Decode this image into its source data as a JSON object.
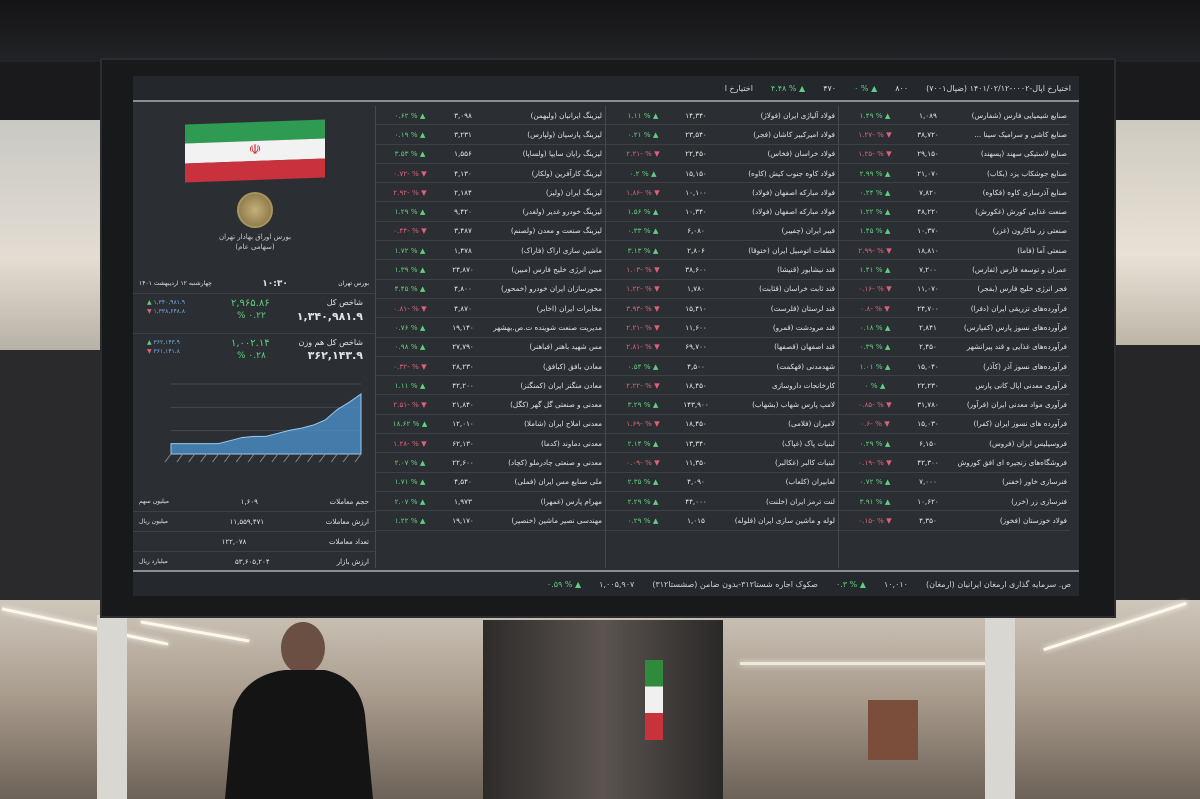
{
  "header": {
    "items": [
      "اختیارخ اپال-۰۰۰۲-۱۴۰۱/۰۲/۱۲ (ضپال۷۰۰۱)",
      "۸۰۰",
      "▲ % ۰",
      "۴۷۰",
      "▲ % ۴.۴۸",
      "اختیارخ ا"
    ]
  },
  "footer": {
    "items": [
      "ص. سرمایه گذاری ارمغان ایرانیان (ارمغان)",
      "۱۰,۰۱۰",
      "▲ % ۰.۳",
      "صکوک اجاره شستا۳۱۲-بدون ضامن (صشستا۳۱۲)",
      "۱,۰۰۵,۹۰۷",
      "▲ % ۰.۵۹"
    ]
  },
  "left_panel": {
    "emblem_text": [
      "بورس اوراق بهادار تهران",
      "(سهامی عام)"
    ],
    "date": "چهارشنبه ۱۲ اردیبهشت ۱۴۰۱",
    "time": "۱۰:۳۰",
    "session": "بورس تهران",
    "index_label": "شاخص کل",
    "index_value": "۱,۳۴۰,۹۸۱.۹",
    "index_change": "۲,۹۶۵.۸۶",
    "index_pct": "% ۰.۲۲",
    "index_high": "۱,۳۴۰,۹۸۱.۹",
    "index_low": "۱,۳۳۸,۶۴۸.۸",
    "eq_label": "شاخص کل هم وزن",
    "eq_value": "۳۶۲,۱۴۳.۹",
    "eq_change": "۱,۰۰۲.۱۴",
    "eq_pct": "% ۰.۲۸",
    "eq_high": "۳۶۲,۱۴۳.۹",
    "eq_low": "۳۶۱,۱۴۱.۸",
    "stats": [
      {
        "label": "حجم معاملات",
        "value": "۱,۶۰۹",
        "unit": "میلیون سهم"
      },
      {
        "label": "ارزش معاملات",
        "value": "۱۱,۵۵۹,۴۷۱",
        "unit": "میلیون ریال"
      },
      {
        "label": "تعداد معاملات",
        "value": "۱۲۲,۰۷۸",
        "unit": ""
      },
      {
        "label": "ارزش بازار",
        "value": "۵۳,۶۰۵,۲۰۴",
        "unit": "میلیارد ریال"
      }
    ]
  },
  "chart_data": {
    "type": "area",
    "values": [
      1,
      1,
      1,
      1,
      1,
      1.3,
      1.6,
      1.7,
      1.7,
      2,
      2.3,
      2.5,
      2.8,
      3.3,
      4.3,
      5,
      5.8
    ],
    "color": "#4a90c8"
  },
  "colors": {
    "up": "#5fd07e",
    "down": "#e0607a"
  },
  "columns": [
    [
      [
        "لیزینگ ایرانیان (ولبهمن)",
        "۳,۰۹۸",
        "۰.۶۲",
        1
      ],
      [
        "لیزینگ پارسیان (ولپارس)",
        "۳,۲۳۱",
        "۰.۱۹",
        1
      ],
      [
        "لیزینگ رایان سایپا (ولساپا)",
        "۱,۵۵۶",
        "۳.۵۳",
        1
      ],
      [
        "لیزینگ کارآفرین (ولکار)",
        "۴,۱۳۰",
        "-۰.۷۲",
        0
      ],
      [
        "لیزینگ ایران (ولیز)",
        "۲,۱۸۴",
        "-۲.۹۲",
        0
      ],
      [
        "لیزینگ خودرو غدیر (ولغدر)",
        "۹,۴۲۰",
        "۱.۲۹",
        1
      ],
      [
        "لیزینگ صنعت و معدن (ولصنم)",
        "۳,۴۸۷",
        "-۰.۴۴",
        0
      ],
      [
        "ماشین سازی اراک (فاراک)",
        "۱,۴۷۸",
        "۱.۷۲",
        1
      ],
      [
        "مبین انرژی خلیج فارس (مبین)",
        "۲۴,۸۷۰",
        "۱.۳۹",
        1
      ],
      [
        "محورسازان ایران خودرو (خمحور)",
        "۴,۸۰۰",
        "۴.۴۵",
        1
      ],
      [
        "مخابرات ایران (اخابر)",
        "۴,۸۷۰",
        "-۰.۸۱",
        0
      ],
      [
        "مدیریت صنعت شوینده ت.ص.بهشهر",
        "۱۹,۱۴۰",
        "۰.۷۶",
        1
      ],
      [
        "مس شهید باهنر (فباهنر)",
        "۲۷,۷۹۰",
        "۰.۹۸",
        1
      ],
      [
        "معادن بافق (کبافق)",
        "۲۸,۲۳۰",
        "-۰.۳۲",
        0
      ],
      [
        "معادن منگنز ایران (کمنگنز)",
        "۴۲,۲۰۰",
        "۱.۱۱",
        1
      ],
      [
        "معدنی و صنعتی گل گهر (کگل)",
        "۲۱,۸۴۰",
        "-۲.۵۱",
        0
      ],
      [
        "معدنی املاح ایران (شاملا)",
        "۱۲,۰۱۰",
        "۱۸.۶۲",
        1
      ],
      [
        "معدنی دماوند (کدما)",
        "۶۲,۱۳۰",
        "-۱.۲۸",
        0
      ],
      [
        "معدنی و صنعتی چادرملو (کچاد)",
        "۲۲,۶۰۰",
        "۲.۰۷",
        1
      ],
      [
        "ملی صنایع مس ایران (فملی)",
        "۴,۵۴۰",
        "۱.۷۱",
        1
      ],
      [
        "مهرام پارس (غمهرا)",
        "۱,۹۷۳",
        "۲.۰۷",
        1
      ],
      [
        "مهندسی نصیر ماشین (خنصیر)",
        "۱۹,۱۷۰",
        "۱.۲۲",
        1
      ]
    ],
    [
      [
        "فولاد آلیاژی ایران (فولاژ)",
        "۱۴,۳۴۰",
        "۱.۱۱",
        1
      ],
      [
        "فولاد امیرکبیر کاشان (فجر)",
        "۲۳,۵۴۰",
        "۰.۲۱",
        1
      ],
      [
        "فولاد خراسان (فخاس)",
        "۲۲,۴۵۰",
        "-۲.۲۱",
        0
      ],
      [
        "فولاد کاوه جنوب کیش (کاوه)",
        "۱۵,۱۵۰",
        "۰.۲",
        1
      ],
      [
        "فولاد مبارکه اصفهان (فولاد)",
        "۱۰,۱۰۰",
        "-۱.۸۶",
        0
      ],
      [
        "فولاد مبارکه اصفهان (فولاد)",
        "۱۰,۳۴۰",
        "۱.۵۶",
        1
      ],
      [
        "فیبر ایران (چفیبر)",
        "۶,۰۸۰",
        "۰.۳۳",
        1
      ],
      [
        "قطعات اتومبیل ایران (ختوقا)",
        "۲,۸۰۶",
        "۳.۱۳",
        1
      ],
      [
        "قند نیشابور (قنیشا)",
        "۳۸,۶۰۰",
        "-۱.۰۳",
        0
      ],
      [
        "قند ثابت خراسان (قثابت)",
        "۱,۷۸۰",
        "-۱.۲۲",
        0
      ],
      [
        "قند لرستان (قلرست)",
        "۱۵,۴۱۰",
        "-۳.۹۳",
        0
      ],
      [
        "قند مرودشت (قمرو)",
        "۱۱,۶۰۰",
        "-۲.۲۱",
        0
      ],
      [
        "قند اصفهان (قصفها)",
        "۶۹,۷۰۰",
        "-۲.۸۱",
        0
      ],
      [
        "شهدمدنی (قهکمت)",
        "۴,۵۰۰",
        "۰.۵۴",
        1
      ],
      [
        "کارخانجات داروسازی",
        "۱۸,۴۵۰",
        "-۲.۲۲",
        0
      ],
      [
        "لامپ پارس شهاب (بشهاب)",
        "۱۴۳,۹۰۰",
        "۳.۲۹",
        1
      ],
      [
        "لامیران (فلامی)",
        "۱۸,۴۵۰",
        "-۱.۶۹",
        0
      ],
      [
        "لبنیات پاک (غپاک)",
        "۱۳,۳۴۰",
        "۲.۱۴",
        1
      ],
      [
        "لبنیات کالبر (غکالبر)",
        "۱۱,۳۵۰",
        "-۰.۰۹",
        0
      ],
      [
        "لعابیران (کلعاب)",
        "۴,۰۹۰",
        "۲.۳۵",
        1
      ],
      [
        "لنت ترمز ایران (خلنت)",
        "۴۴,۰۰۰",
        "۲.۲۹",
        1
      ],
      [
        "لوله و ماشین سازی ایران (فلوله)",
        "۱,۰۱۵",
        "۰.۲۹",
        1
      ]
    ],
    [
      [
        "صنایع شیمیایی فارس (شفارس)",
        "۱,۰۸۹",
        "۱.۴۹",
        1
      ],
      [
        "صنایع کاشی و سرامیک سینا ...",
        "۳۸,۷۲۰",
        "-۱.۲۷",
        0
      ],
      [
        "صنایع لاستیکی سهند (پسهند)",
        "۲۹,۱۵۰",
        "-۱.۲۵",
        0
      ],
      [
        "صنایع جوشکاب یزد (بکاب)",
        "۲۱,۰۷۰",
        "۲.۹۹",
        1
      ],
      [
        "صنایع آذرسازی کاوه (فکاوه)",
        "۷,۸۲۰",
        "۰.۲۴",
        1
      ],
      [
        "صنعت غذایی کورش (غکورش)",
        "۴۸,۲۲۰",
        "۱.۲۲",
        1
      ],
      [
        "صنعتی زر ماکارون (غزر)",
        "۱۰,۳۷۰",
        "۱.۴۵",
        1
      ],
      [
        "صنعتی آما (فاما)",
        "۱۸,۸۱۰",
        "-۲.۹۹",
        0
      ],
      [
        "عمران و توسعه فارس (ثفارس)",
        "۷,۲۰۰",
        "۱.۴۱",
        1
      ],
      [
        "فجر انرژی خلیج فارس (بفجر)",
        "۱۱,۰۷۰",
        "-۰.۱۶",
        0
      ],
      [
        "فرآورده‌های تزریقی ایران (دفرا)",
        "۲۴,۷۰۰",
        "-۰.۸",
        0
      ],
      [
        "فرآورده‌های نسوز پارس (کفپارس)",
        "۲,۸۴۱",
        "۰.۱۸",
        1
      ],
      [
        "فرآورده‌های غذایی و قند پیرانشهر",
        "۲,۴۵۰",
        "۰.۳۹",
        1
      ],
      [
        "فرآورده‌های نسوز آذر (کآذر)",
        "۱۵,۰۴۰",
        "۱.۰۱",
        1
      ],
      [
        "فرآوری معدنی اپال کانی پارس",
        "۲۲,۲۳۰",
        "۰",
        1
      ],
      [
        "فرآوری مواد معدنی ایران (فرآور)",
        "۳۱,۷۸۰",
        "-۰.۸۵",
        0
      ],
      [
        "فرآورده های نسوز ایران (کفرا)",
        "۱۵,۰۳۰",
        "-۰.۶",
        0
      ],
      [
        "فروسیلیس ایران (فروس)",
        "۶,۱۵۰",
        "۰.۲۹",
        1
      ],
      [
        "فروشگاه‌های زنجیره ای افق کوروش",
        "۴۲,۳۰۰",
        "-۰.۱۹",
        0
      ],
      [
        "فنرسازی خاور (خفنر)",
        "۷,۰۰۰",
        "۰.۷۲",
        1
      ],
      [
        "فنرسازی زر (خزر)",
        "۱۰,۶۲۰",
        "۳.۹۱",
        1
      ],
      [
        "فولاد خوزستان (فخوز)",
        "۴,۳۵۰",
        "-۰.۱۵",
        0
      ]
    ]
  ]
}
